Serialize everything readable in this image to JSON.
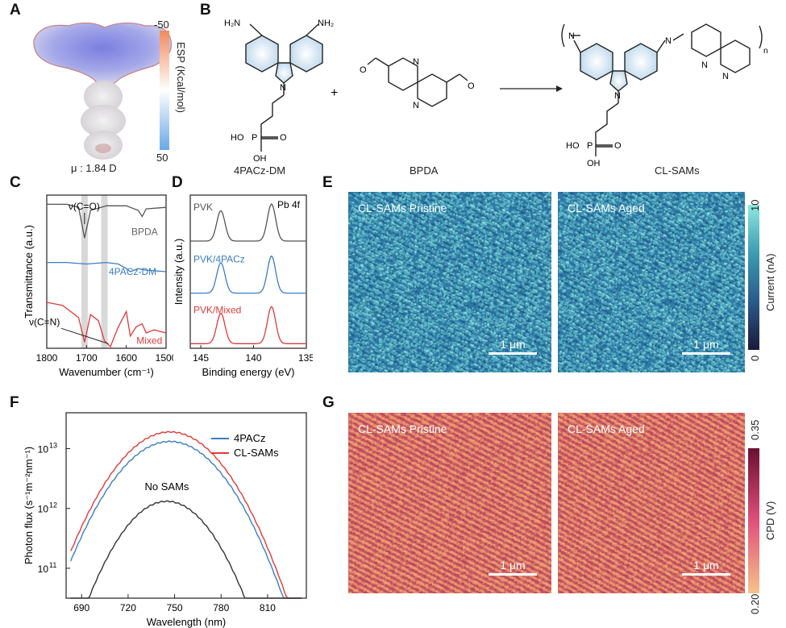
{
  "panels": {
    "A": "A",
    "B": "B",
    "C": "C",
    "D": "D",
    "E": "E",
    "F": "F",
    "G": "G"
  },
  "panelA": {
    "dipole": "μ : 1.84 D",
    "colorbar": {
      "label": "ESP (Kcal/mol)",
      "max": "-50",
      "min": "50",
      "colors": [
        "#f08a5d",
        "#ffffff",
        "#6aa8e6"
      ]
    }
  },
  "panelB": {
    "mol1": {
      "name": "4PACz-DM",
      "nh2_left": "H₂N",
      "nh2_right": "NH₂",
      "n": "N",
      "p": "P",
      "o": "O",
      "ho": "HO",
      "oh": "OH"
    },
    "plus": "+",
    "mol2": {
      "name": "BPDA",
      "o_left": "O",
      "o_right": "O",
      "n1": "N",
      "n2": "N"
    },
    "product": {
      "name": "CL-SAMs",
      "n_sub": "n",
      "n": "N",
      "n_left": "N",
      "n_mid": "N",
      "n_py1": "N",
      "n_py2": "N",
      "p": "P",
      "o": "O",
      "ho": "HO",
      "oh": "OH"
    }
  },
  "chart_data": [
    {
      "id": "C",
      "type": "line",
      "xlabel": "Wavenumber (cm⁻¹)",
      "ylabel": "Transmittance (a.u.)",
      "xlim": [
        1800,
        1500
      ],
      "xticks": [
        "1800",
        "1700",
        "1600",
        "1500"
      ],
      "highlight_bands": [
        1705,
        1655
      ],
      "annotations": [
        "ν(C=O)",
        "ν(C=N)"
      ],
      "series": [
        {
          "name": "BPDA",
          "color": "#555555",
          "x": [
            1800,
            1750,
            1720,
            1705,
            1690,
            1650,
            1600,
            1570,
            1560,
            1550,
            1500
          ],
          "y": [
            0.94,
            0.94,
            0.92,
            0.72,
            0.9,
            0.93,
            0.93,
            0.9,
            0.86,
            0.91,
            0.92
          ]
        },
        {
          "name": "4PACz-DM",
          "color": "#3b7dc4",
          "x": [
            1800,
            1750,
            1700,
            1650,
            1620,
            1600,
            1590,
            1570,
            1550,
            1500
          ],
          "y": [
            0.56,
            0.56,
            0.55,
            0.56,
            0.55,
            0.52,
            0.5,
            0.52,
            0.51,
            0.5
          ]
        },
        {
          "name": "Mixed",
          "color": "#e03a3a",
          "x": [
            1800,
            1760,
            1720,
            1705,
            1690,
            1670,
            1655,
            1640,
            1620,
            1600,
            1590,
            1575,
            1560,
            1550,
            1530,
            1500
          ],
          "y": [
            0.3,
            0.28,
            0.2,
            0.04,
            0.22,
            0.18,
            0.05,
            0.01,
            0.14,
            0.24,
            0.08,
            0.14,
            0.16,
            0.1,
            0.12,
            0.1
          ]
        }
      ]
    },
    {
      "id": "D",
      "type": "line",
      "xlabel": "Binding energy (eV)",
      "ylabel": "Intensity (a.u.)",
      "xlim": [
        146,
        135
      ],
      "xticks": [
        "145",
        "140",
        "135"
      ],
      "annotations": [
        "Pb 4f"
      ],
      "series": [
        {
          "name": "PVK",
          "color": "#555555",
          "center": [
            143.1,
            138.3
          ],
          "baseline": 0.7,
          "height": 0.22
        },
        {
          "name": "PVK/4PACz",
          "color": "#3b7dc4",
          "center": [
            143.1,
            138.3
          ],
          "baseline": 0.36,
          "height": 0.22
        },
        {
          "name": "PVK/Mixed",
          "color": "#e03a3a",
          "center": [
            143.1,
            138.3
          ],
          "baseline": 0.03,
          "height": 0.22
        }
      ]
    },
    {
      "id": "F",
      "type": "line",
      "xlabel": "Wavelength (nm)",
      "ylabel": "Photon flux (s⁻¹m⁻²nm⁻¹)",
      "xlim": [
        680,
        835
      ],
      "xticks": [
        "690",
        "720",
        "750",
        "780",
        "810"
      ],
      "ylim_log10": [
        10.5,
        13.6
      ],
      "yticks": [
        {
          "label": "10",
          "exp": "11",
          "v": 11
        },
        {
          "label": "10",
          "exp": "12",
          "v": 12
        },
        {
          "label": "10",
          "exp": "13",
          "v": 13
        }
      ],
      "legend": "top-right",
      "series": [
        {
          "name": "4PACz",
          "color": "#3b7dc4",
          "peak_nm": 747,
          "peak_log": 13.12,
          "width": 32
        },
        {
          "name": "CL-SAMs",
          "color": "#e03a3a",
          "peak_nm": 747,
          "peak_log": 13.28,
          "width": 32
        },
        {
          "name": "No SAMs",
          "color": "#333333",
          "peak_nm": 745,
          "peak_log": 12.12,
          "width": 28
        }
      ]
    }
  ],
  "panelE": {
    "pristine": "CL-SAMs Pristine",
    "aged": "CL-SAMs Aged",
    "scalebar": "1 μm",
    "colorbar": {
      "label": "Current (nA)",
      "max": "10",
      "min": "0",
      "colors": [
        "#1a1a3a",
        "#2a5a8a",
        "#3a9ab0",
        "#8ee8e0"
      ]
    }
  },
  "panelG": {
    "pristine": "CL-SAMs Pristine",
    "aged": "CL-SAMs Aged",
    "scalebar": "1 μm",
    "colorbar": {
      "label": "CPD (V)",
      "max": "0.35",
      "min": "0.20",
      "colors": [
        "#f5c48a",
        "#e0507a",
        "#6a1030"
      ]
    }
  }
}
